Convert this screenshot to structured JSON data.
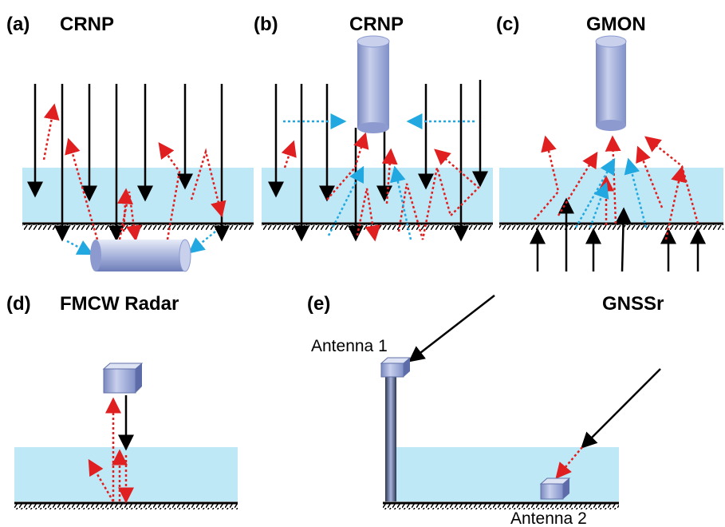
{
  "panels": [
    {
      "label": "(a)",
      "title": "CRNP"
    },
    {
      "label": "(b)",
      "title": "CRNP"
    },
    {
      "label": "(c)",
      "title": "GMON"
    },
    {
      "label": "(d)",
      "title": "FMCW Radar"
    },
    {
      "label": "(e)",
      "title": "GNSSr",
      "antennas": [
        "Antenna 1",
        "Antenna 2"
      ]
    }
  ]
}
